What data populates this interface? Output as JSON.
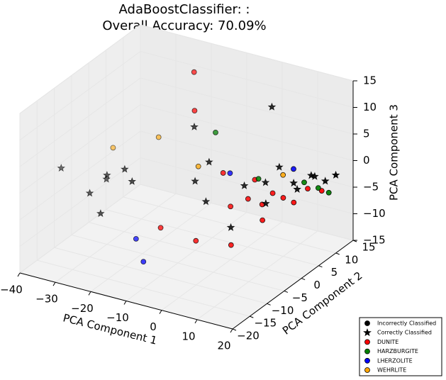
{
  "chart_data": {
    "type": "scatter3d",
    "title": "AdaBoostClassifier: :",
    "subtitle": "Overall Accuracy: 70.09%",
    "xlabel": "PCA Component 1",
    "ylabel": "PCA Component 2",
    "zlabel": "PCA Component 3",
    "xlim": [
      -40,
      20
    ],
    "ylim": [
      -20,
      15
    ],
    "zlim": [
      -15,
      15
    ],
    "xticks": [
      {
        "value": -40,
        "label": "−40"
      },
      {
        "value": -30,
        "label": "−30"
      },
      {
        "value": -20,
        "label": "−20"
      },
      {
        "value": -10,
        "label": "−10"
      },
      0,
      10,
      20
    ],
    "yticks": [
      {
        "value": -20,
        "label": "−20"
      },
      {
        "value": -15,
        "label": "−15"
      },
      {
        "value": -10,
        "label": "−10"
      },
      {
        "value": -5,
        "label": "−5"
      },
      0,
      5,
      10,
      15
    ],
    "zticks": [
      {
        "value": -15,
        "label": "−15"
      },
      {
        "value": -10,
        "label": "−10"
      },
      {
        "value": -5,
        "label": "−5"
      },
      0,
      5,
      10,
      15
    ],
    "grid": true,
    "legend": "lower right",
    "markers": [
      {
        "name": "Incorrectly Classified",
        "shape": "circle",
        "color": "#000000"
      },
      {
        "name": "Correctly Classified",
        "shape": "star",
        "color": "#000000"
      }
    ],
    "classes": [
      {
        "name": "DUNITE",
        "color": "#ff0000",
        "points": [
          {
            "x": [
              -10,
              -2,
              5,
              0,
              3,
              6,
              8,
              10,
              12,
              14,
              2,
              -5,
              -15,
              -20,
              16,
              9
            ],
            "y": [
              -10,
              -8,
              -5,
              0,
              2,
              3,
              4,
              5,
              6,
              8,
              5,
              3,
              5,
              10,
              10,
              0
            ],
            "z": [
              -6,
              -8,
              -9,
              -5,
              -4,
              -5,
              -3,
              -4,
              -5,
              -3,
              -2,
              -1,
              8,
              12,
              -4,
              -6
            ]
          },
          {
            "x": [
              -25,
              -10,
              0,
              5,
              8,
              11,
              15,
              -5,
              3,
              -30
            ],
            "y": [
              -5,
              0,
              4,
              5,
              2,
              7,
              9,
              -2,
              -3,
              -10
            ],
            "z": [
              0,
              -2,
              -3,
              -2,
              -4,
              -2,
              -1,
              -4,
              -7,
              -3
            ]
          }
        ]
      },
      {
        "name": "HARZBURGITE",
        "color": "#008000",
        "points": [
          {
            "x": [
              13,
              16,
              18,
              -12,
              4
            ],
            "y": [
              8,
              9,
              10,
              8,
              4
            ],
            "z": [
              -2,
              -3,
              -4,
              3,
              -1
            ]
          },
          {
            "x": [
              14,
              17,
              12,
              -8,
              19
            ],
            "y": [
              9,
              10,
              7,
              2,
              11
            ],
            "z": [
              -1,
              -2,
              -3,
              1,
              -1
            ]
          }
        ]
      },
      {
        "name": "LHERZOLITE",
        "color": "#0000ff",
        "points": [
          {
            "x": [
              -15,
              -10,
              10,
              -5
            ],
            "y": [
              -12,
              -15,
              8,
              5
            ],
            "z": [
              -8,
              -10,
              0,
              -2
            ]
          },
          {
            "x": [
              -20,
              -25,
              5
            ],
            "y": [
              -8,
              -12,
              9
            ],
            "z": [
              0,
              -5,
              -1
            ]
          }
        ]
      },
      {
        "name": "WEHRLITE",
        "color": "#ffa500",
        "points": [
          {
            "x": [
              -38,
              -30,
              -12,
              8
            ],
            "y": [
              5,
              10,
              3,
              7
            ],
            "z": [
              -3,
              -2,
              -1,
              -1
            ]
          },
          {
            "x": [
              -35,
              -30,
              -18,
              -40,
              0
            ],
            "y": [
              0,
              -5,
              8,
              -8,
              12
            ],
            "z": [
              -6,
              -2,
              3,
              -1,
              8
            ]
          }
        ]
      }
    ]
  }
}
